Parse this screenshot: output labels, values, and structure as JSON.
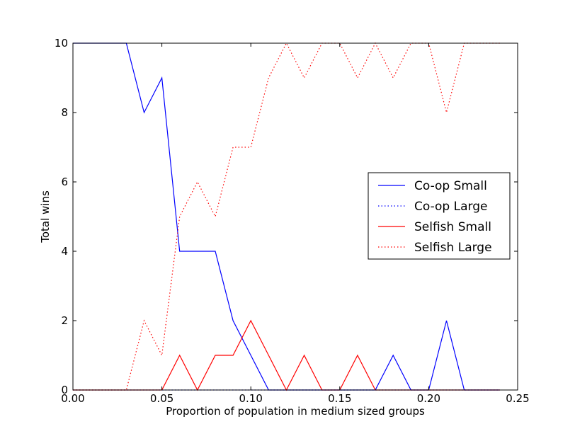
{
  "chart_data": {
    "type": "line",
    "title": "",
    "xlabel": "Proportion of population in medium sized groups",
    "ylabel": "Total wins",
    "xlim": [
      0.0,
      0.25
    ],
    "ylim": [
      0,
      10
    ],
    "grid": false,
    "legend_position": "center-right",
    "x_ticks": [
      0.0,
      0.05,
      0.1,
      0.15,
      0.2,
      0.25
    ],
    "x_tick_labels": [
      "0.00",
      "0.05",
      "0.10",
      "0.15",
      "0.20",
      "0.25"
    ],
    "y_ticks": [
      0,
      2,
      4,
      6,
      8,
      10
    ],
    "y_tick_labels": [
      "0",
      "2",
      "4",
      "6",
      "8",
      "10"
    ],
    "x": [
      0.0,
      0.01,
      0.02,
      0.03,
      0.04,
      0.05,
      0.06,
      0.07,
      0.08,
      0.09,
      0.1,
      0.11,
      0.12,
      0.13,
      0.14,
      0.15,
      0.16,
      0.17,
      0.18,
      0.19,
      0.2,
      0.21,
      0.22,
      0.23,
      0.24
    ],
    "series": [
      {
        "name": "Co-op Small",
        "color": "#0000ff",
        "style": "solid",
        "values": [
          10,
          10,
          10,
          10,
          8,
          9,
          4,
          4,
          4,
          2,
          1,
          0,
          0,
          0,
          0,
          0,
          0,
          0,
          1,
          0,
          0,
          2,
          0,
          0,
          0
        ]
      },
      {
        "name": "Co-op Large",
        "color": "#0000ff",
        "style": "dotted",
        "values": [
          0,
          0,
          0,
          0,
          0,
          0,
          0,
          0,
          0,
          0,
          0,
          0,
          0,
          0,
          0,
          0,
          0,
          0,
          0,
          0,
          0,
          0,
          0,
          0,
          0
        ]
      },
      {
        "name": "Selfish Small",
        "color": "#ff0000",
        "style": "solid",
        "values": [
          0,
          0,
          0,
          0,
          0,
          0,
          1,
          0,
          1,
          1,
          2,
          1,
          0,
          1,
          0,
          0,
          1,
          0,
          0,
          0,
          0,
          0,
          0,
          0,
          0
        ]
      },
      {
        "name": "Selfish Large",
        "color": "#ff0000",
        "style": "dotted",
        "values": [
          0,
          0,
          0,
          0,
          2,
          1,
          5,
          6,
          5,
          7,
          7,
          9,
          10,
          9,
          10,
          10,
          9,
          10,
          9,
          10,
          10,
          8,
          10,
          10,
          10
        ]
      }
    ]
  }
}
